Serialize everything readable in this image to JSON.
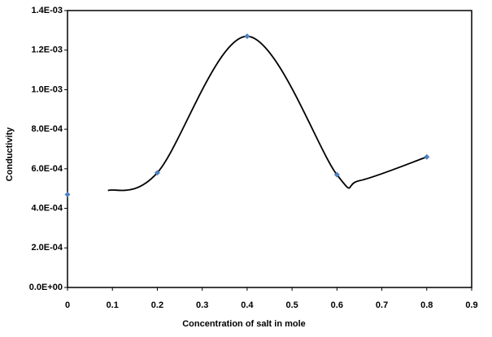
{
  "chart_data": {
    "type": "scatter",
    "x_label": "Concentration of salt in mole",
    "y_label": "Conductivity",
    "points": {
      "color": "#4f81bd",
      "x": [
        0,
        0.2,
        0.4,
        0.6,
        0.8
      ],
      "values": [
        0.00047,
        0.00058,
        0.00127,
        0.00057,
        0.00066
      ]
    },
    "curve": {
      "color": "#000000",
      "x": [
        0.09,
        0.2,
        0.4,
        0.6,
        0.65,
        0.8
      ],
      "values": [
        0.00049,
        0.00058,
        0.00127,
        0.00057,
        0.00054,
        0.00066
      ]
    },
    "xlim": [
      0,
      0.9
    ],
    "xticks": [
      0,
      0.1,
      0.2,
      0.3,
      0.4,
      0.5,
      0.6,
      0.7,
      0.8,
      0.9
    ],
    "ylim": [
      0,
      0.0014
    ],
    "yticks": [
      {
        "value": 0,
        "label": "0.0E+00"
      },
      {
        "value": 0.0002,
        "label": "2.0E-04"
      },
      {
        "value": 0.0004,
        "label": "4.0E-04"
      },
      {
        "value": 0.0006,
        "label": "6.0E-04"
      },
      {
        "value": 0.0008,
        "label": "8.0E-04"
      },
      {
        "value": 0.001,
        "label": "1.0E-03"
      },
      {
        "value": 0.0012,
        "label": "1.2E-03"
      },
      {
        "value": 0.0014,
        "label": "1.4E-03"
      }
    ]
  }
}
